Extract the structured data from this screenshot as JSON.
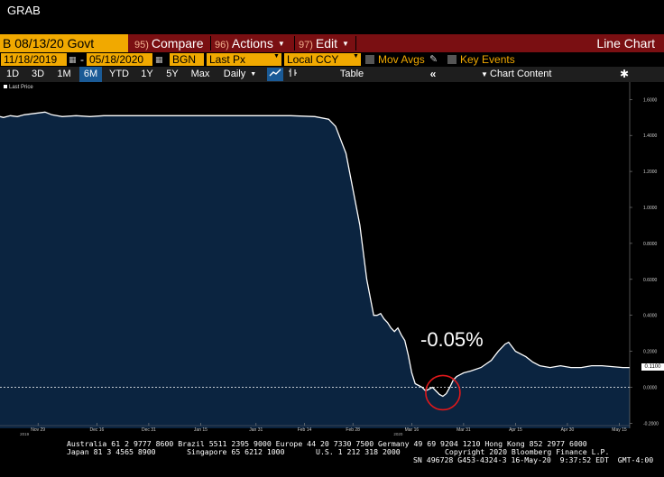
{
  "window": {
    "title": "GRAB"
  },
  "command_bar": {
    "security": "B 08/13/20 Govt",
    "buttons": [
      {
        "num": "95)",
        "label": "Compare",
        "has_caret": false
      },
      {
        "num": "96)",
        "label": "Actions",
        "has_caret": true
      },
      {
        "num": "97)",
        "label": "Edit",
        "has_caret": true
      }
    ],
    "function_title": "Line Chart"
  },
  "options": {
    "start_date": "11/18/2019",
    "end_date": "05/18/2020",
    "source": "BGN",
    "field": "Last Px",
    "currency": "Local CCY",
    "mov_avgs_label": "Mov Avgs",
    "key_events_label": "Key Events"
  },
  "range_bar": {
    "ranges": [
      "1D",
      "3D",
      "1M",
      "6M",
      "YTD",
      "1Y",
      "5Y",
      "Max"
    ],
    "active_range": "6M",
    "frequency": "Daily",
    "table_label": "Table",
    "chart_content_label": "Chart Content"
  },
  "chart_data": {
    "type": "area",
    "legend": "Last Price",
    "annotation": "-0.05%",
    "last_value_label": "0.1100",
    "y_ticks": [
      "1.6000",
      "1.4000",
      "1.2000",
      "1.0000",
      "0.8000",
      "0.6000",
      "0.4000",
      "0.2000",
      "0.0000",
      "-0.2000"
    ],
    "ylim": [
      -0.2,
      1.6
    ],
    "x_ticks": [
      "Nov 29",
      "Dec 16",
      "Dec 31",
      "Jan 15",
      "Jan 31",
      "Feb 14",
      "Feb 28",
      "Mar 16",
      "Mar 31",
      "Apr 15",
      "Apr 30",
      "May 15"
    ],
    "year_labels": [
      {
        "label": "2019",
        "near": "Nov 29"
      },
      {
        "label": "2020",
        "near": "Mar 16"
      }
    ],
    "zero_line": 0.0,
    "colors": {
      "fill": "#0b2440",
      "line": "#ffffff"
    },
    "points": [
      [
        "Nov 18",
        1.505
      ],
      [
        "Nov 19",
        1.5
      ],
      [
        "Nov 21",
        1.51
      ],
      [
        "Nov 23",
        1.505
      ],
      [
        "Nov 25",
        1.515
      ],
      [
        "Nov 27",
        1.52
      ],
      [
        "Nov 29",
        1.525
      ],
      [
        "Dec 01",
        1.53
      ],
      [
        "Dec 03",
        1.515
      ],
      [
        "Dec 06",
        1.505
      ],
      [
        "Dec 10",
        1.51
      ],
      [
        "Dec 14",
        1.505
      ],
      [
        "Dec 18",
        1.51
      ],
      [
        "Dec 22",
        1.51
      ],
      [
        "Dec 28",
        1.51
      ],
      [
        "Jan 04",
        1.51
      ],
      [
        "Jan 10",
        1.51
      ],
      [
        "Jan 16",
        1.51
      ],
      [
        "Jan 24",
        1.51
      ],
      [
        "Feb 02",
        1.51
      ],
      [
        "Feb 10",
        1.51
      ],
      [
        "Feb 17",
        1.505
      ],
      [
        "Feb 21",
        1.49
      ],
      [
        "Feb 23",
        1.45
      ],
      [
        "Feb 26",
        1.3
      ],
      [
        "Feb 28",
        1.1
      ],
      [
        "Mar 01",
        0.9
      ],
      [
        "Mar 03",
        0.6
      ],
      [
        "Mar 05",
        0.4
      ],
      [
        "Mar 06",
        0.4
      ],
      [
        "Mar 07",
        0.41
      ],
      [
        "Mar 08",
        0.38
      ],
      [
        "Mar 09",
        0.36
      ],
      [
        "Mar 10",
        0.33
      ],
      [
        "Mar 11",
        0.31
      ],
      [
        "Mar 12",
        0.33
      ],
      [
        "Mar 13",
        0.29
      ],
      [
        "Mar 14",
        0.26
      ],
      [
        "Mar 15",
        0.18
      ],
      [
        "Mar 16",
        0.08
      ],
      [
        "Mar 17",
        0.02
      ],
      [
        "Mar 18",
        0.01
      ],
      [
        "Mar 19",
        0.0
      ],
      [
        "Mar 20",
        -0.02
      ],
      [
        "Mar 21",
        -0.01
      ],
      [
        "Mar 22",
        0.0
      ],
      [
        "Mar 23",
        -0.02
      ],
      [
        "Mar 24",
        -0.04
      ],
      [
        "Mar 25",
        -0.05
      ],
      [
        "Mar 26",
        -0.035
      ],
      [
        "Mar 27",
        0.0
      ],
      [
        "Mar 28",
        0.04
      ],
      [
        "Mar 29",
        0.06
      ],
      [
        "Mar 31",
        0.08
      ],
      [
        "Apr 02",
        0.09
      ],
      [
        "Apr 05",
        0.11
      ],
      [
        "Apr 08",
        0.15
      ],
      [
        "Apr 10",
        0.2
      ],
      [
        "Apr 12",
        0.24
      ],
      [
        "Apr 13",
        0.25
      ],
      [
        "Apr 15",
        0.2
      ],
      [
        "Apr 18",
        0.17
      ],
      [
        "Apr 20",
        0.14
      ],
      [
        "Apr 22",
        0.12
      ],
      [
        "Apr 25",
        0.11
      ],
      [
        "Apr 28",
        0.12
      ],
      [
        "May 01",
        0.11
      ],
      [
        "May 04",
        0.11
      ],
      [
        "May 07",
        0.12
      ],
      [
        "May 10",
        0.12
      ],
      [
        "May 13",
        0.115
      ],
      [
        "May 16",
        0.11
      ],
      [
        "May 18",
        0.11
      ]
    ]
  },
  "footer": {
    "line1": "Australia 61 2 9777 8600 Brazil 5511 2395 9000 Europe 44 20 7330 7500 Germany 49 69 9204 1210 Hong Kong 852 2977 6000",
    "line2": "Japan 81 3 4565 8900       Singapore 65 6212 1000       U.S. 1 212 318 2000          Copyright 2020 Bloomberg Finance L.P.",
    "line3": "SN 496728 G453-4324-3 16-May-20  9:37:52 EDT  GMT-4:00"
  }
}
